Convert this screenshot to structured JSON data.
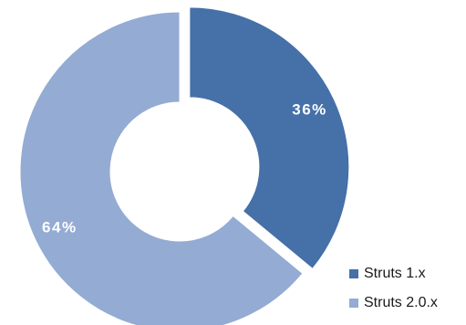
{
  "chart_data": {
    "type": "pie",
    "title": "",
    "series": [
      {
        "name": "Struts 1.x",
        "value": 36,
        "label": "36%",
        "color": "#4570A8"
      },
      {
        "name": "Struts 2.0.x",
        "value": 64,
        "label": "64%",
        "color": "#94ABD3"
      }
    ],
    "donut": true,
    "exploded_slice": "Struts 1.x",
    "legend_position": "bottom-right"
  }
}
